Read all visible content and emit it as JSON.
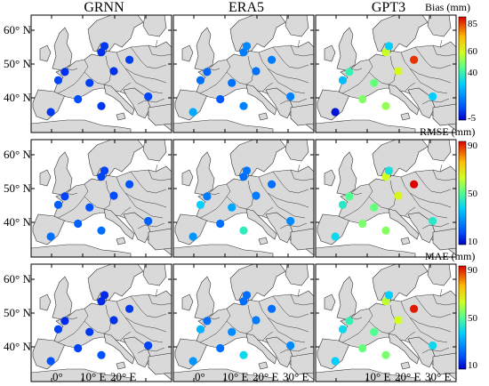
{
  "columns": [
    "GRNN",
    "ERA5",
    "GPT3"
  ],
  "rows": [
    {
      "title": "Bias (mm)",
      "ticks": [
        "85",
        "60",
        "40",
        "-5"
      ],
      "vmin": -5,
      "vmax": 90
    },
    {
      "title": "RMSE (mm)",
      "ticks": [
        "90",
        "50",
        "10"
      ],
      "vmin": 10,
      "vmax": 90
    },
    {
      "title": "MAE (mm)",
      "ticks": [
        "90",
        "50",
        "10"
      ],
      "vmin": 10,
      "vmax": 90
    }
  ],
  "lat_labels": [
    "60° N",
    "50° N",
    "40° N"
  ],
  "lon_labels": [
    "0°",
    "10° E",
    "20° E",
    "30° E"
  ],
  "map_extent": {
    "lon": [
      -10,
      35
    ],
    "lat": [
      35,
      66
    ]
  },
  "colors": {
    "land": "#d9d9d9",
    "sea": "#ffffff",
    "border": "#333333"
  },
  "stations": [
    {
      "lon": -3.7,
      "lat": 40.4
    },
    {
      "lon": -1.3,
      "lat": 48.8
    },
    {
      "lon": 0.8,
      "lat": 51.0
    },
    {
      "lon": 8.7,
      "lat": 48.1
    },
    {
      "lon": 5.0,
      "lat": 43.8
    },
    {
      "lon": 12.5,
      "lat": 42.0
    },
    {
      "lon": 12.5,
      "lat": 56.2
    },
    {
      "lon": 16.5,
      "lat": 51.2
    },
    {
      "lon": 21.5,
      "lat": 54.2
    },
    {
      "lon": 27.5,
      "lat": 44.5
    },
    {
      "lon": 13.5,
      "lat": 57.8
    }
  ],
  "values": {
    "GRNN": {
      "Bias (mm)": [
        3,
        5,
        2,
        4,
        6,
        3,
        2,
        2,
        4,
        5,
        3
      ],
      "RMSE (mm)": [
        24,
        22,
        18,
        20,
        22,
        24,
        18,
        19,
        20,
        22,
        18
      ],
      "MAE (mm)": [
        20,
        18,
        15,
        17,
        18,
        20,
        15,
        16,
        17,
        18,
        15
      ]
    },
    "ERA5": {
      "Bias (mm)": [
        22,
        12,
        10,
        12,
        8,
        15,
        14,
        12,
        14,
        15,
        16
      ],
      "RMSE (mm)": [
        30,
        38,
        26,
        32,
        24,
        45,
        24,
        26,
        24,
        28,
        25
      ],
      "MAE (mm)": [
        30,
        34,
        24,
        28,
        24,
        40,
        24,
        26,
        24,
        28,
        24
      ]
    },
    "GPT3": {
      "Bias (mm)": [
        -2,
        25,
        38,
        45,
        48,
        50,
        56,
        58,
        85,
        28,
        28
      ],
      "RMSE (mm)": [
        40,
        44,
        50,
        52,
        54,
        55,
        62,
        64,
        90,
        44,
        42
      ],
      "MAE (mm)": [
        38,
        40,
        46,
        50,
        52,
        54,
        60,
        62,
        88,
        40,
        38
      ]
    }
  }
}
